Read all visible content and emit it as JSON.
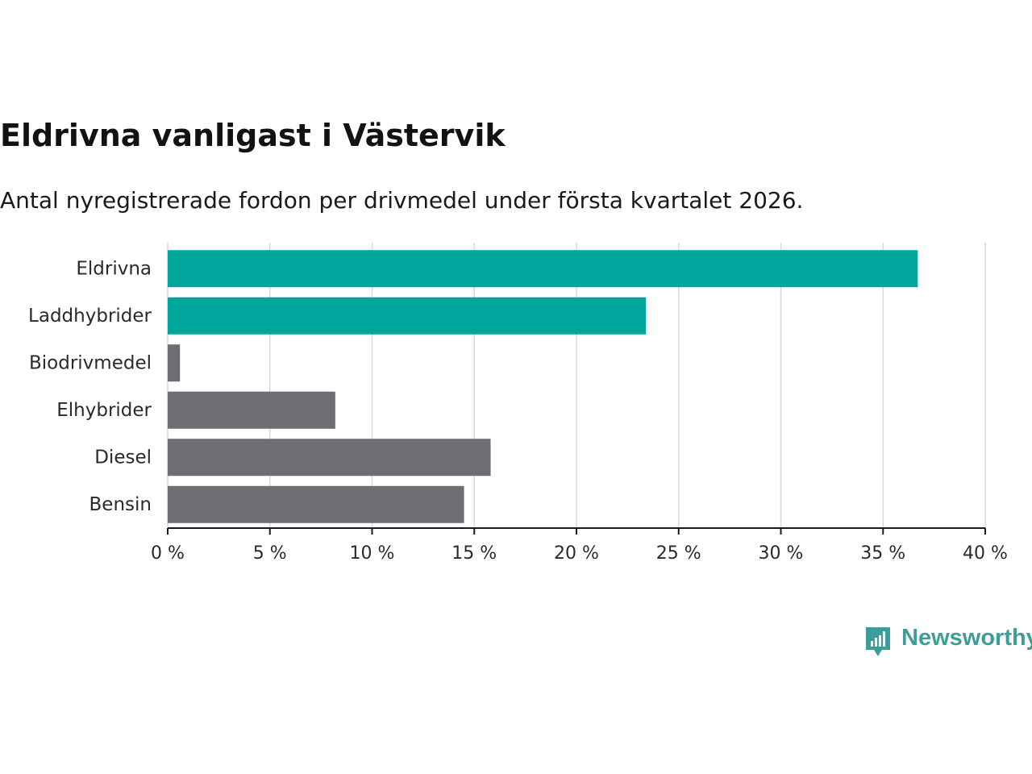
{
  "title": "Eldrivna vanligast i Västervik",
  "subtitle": "Antal nyregistrerade fordon per drivmedel under första kvartalet 2026.",
  "brand": {
    "name": "Newsworthy",
    "color": "#3d9e99"
  },
  "colors": {
    "highlight": "#00a59b",
    "default": "#6e6d73",
    "grid": "#d9d9d9",
    "axis": "#1a1a1a"
  },
  "chart_data": {
    "type": "bar",
    "orientation": "horizontal",
    "categories": [
      "Eldrivna",
      "Laddhybrider",
      "Biodrivmedel",
      "Elhybrider",
      "Diesel",
      "Bensin"
    ],
    "values": [
      36.7,
      23.4,
      0.6,
      8.2,
      15.8,
      14.5
    ],
    "highlighted": [
      true,
      true,
      false,
      false,
      false,
      false
    ],
    "xlim": [
      0,
      40
    ],
    "xticks": [
      0,
      5,
      10,
      15,
      20,
      25,
      30,
      35,
      40
    ],
    "tick_suffix": " %",
    "grid": true,
    "xlabel": "",
    "ylabel": ""
  }
}
